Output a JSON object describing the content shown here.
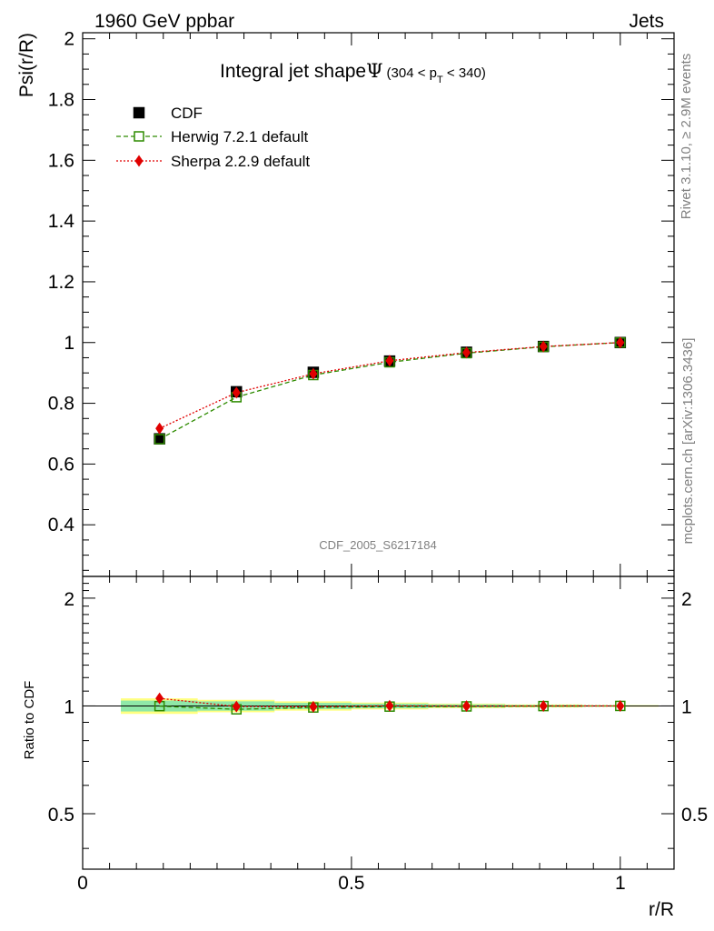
{
  "header": {
    "left": "1960 GeV ppbar",
    "right": "Jets"
  },
  "chart_data": {
    "type": "line",
    "title_main": "Integral jet shape",
    "title_symbol": "Ψ",
    "title_range_a": "(304 < p",
    "title_range_sub": "T",
    "title_range_b": " < 340)",
    "ylabel": "Psi(r/R)",
    "xlabel": "r/R",
    "ratio_ylabel": "Ratio to CDF",
    "watermark": "CDF_2005_S6217184",
    "side_rivet": "Rivet 3.1.10, ≥ 2.9M events",
    "side_mcplots": "mcplots.cern.ch [arXiv:1306.3436]",
    "xlim": [
      0,
      1.1
    ],
    "ylim": [
      0.23,
      2.02
    ],
    "ratio_ylim": [
      0.35,
      2.3
    ],
    "x_ticks": [
      {
        "v": 0,
        "label": "0"
      },
      {
        "v": 0.5,
        "label": "0.5"
      },
      {
        "v": 1,
        "label": "1"
      }
    ],
    "y_ticks": [
      {
        "v": 0.4,
        "label": "0.4"
      },
      {
        "v": 0.6,
        "label": "0.6"
      },
      {
        "v": 0.8,
        "label": "0.8"
      },
      {
        "v": 1,
        "label": "1"
      },
      {
        "v": 1.2,
        "label": "1.2"
      },
      {
        "v": 1.4,
        "label": "1.4"
      },
      {
        "v": 1.6,
        "label": "1.6"
      },
      {
        "v": 1.8,
        "label": "1.8"
      },
      {
        "v": 2,
        "label": "2"
      }
    ],
    "ratio_ticks": [
      {
        "v": 0.5,
        "label": "0.5"
      },
      {
        "v": 1,
        "label": "1"
      },
      {
        "v": 2,
        "label": "2"
      }
    ],
    "x": [
      0.143,
      0.286,
      0.429,
      0.571,
      0.714,
      0.857,
      1.0
    ],
    "band_edges": [
      0.071,
      0.214,
      0.357,
      0.5,
      0.643,
      0.786,
      0.929,
      1.071
    ],
    "band_inner": [
      0.035,
      0.03,
      0.02,
      0.015,
      0.01,
      0.006,
      0.003
    ],
    "band_outer": [
      0.05,
      0.04,
      0.03,
      0.022,
      0.015,
      0.01,
      0.005
    ],
    "series": [
      {
        "name": "CDF",
        "values": [
          0.683,
          0.838,
          0.902,
          0.939,
          0.968,
          0.987,
          1.0
        ],
        "color": "#000000"
      },
      {
        "name": "Herwig 7.2.1 default",
        "values": [
          0.682,
          0.82,
          0.893,
          0.935,
          0.965,
          0.986,
          1.0
        ],
        "color": "#2e8b00"
      },
      {
        "name": "Sherpa 2.2.9 default",
        "values": [
          0.717,
          0.835,
          0.897,
          0.94,
          0.967,
          0.987,
          1.0
        ],
        "color": "#e00000"
      }
    ],
    "legend": [
      {
        "label": "CDF"
      },
      {
        "label": "Herwig 7.2.1 default"
      },
      {
        "label": "Sherpa 2.2.9 default"
      }
    ],
    "colors": {
      "band_inner": "#8fe8a8",
      "band_outer": "#ffff80"
    }
  }
}
